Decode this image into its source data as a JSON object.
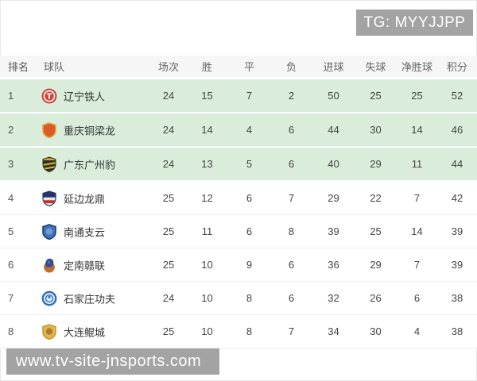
{
  "banners": {
    "top": {
      "text": "TG: MYYJJPP",
      "bg": "#a2a3a2",
      "fg": "#ffffff"
    },
    "bottom": {
      "text": "www.tv-site-jnsports.com",
      "bg": "#a2a3a2",
      "fg": "#ffffff"
    }
  },
  "table": {
    "columns": [
      "排名",
      "球队",
      "场次",
      "胜",
      "平",
      "负",
      "进球",
      "失球",
      "净胜球",
      "积分"
    ],
    "header_bg": "#f5f6f5",
    "highlight_color": "#d9edda",
    "rows": [
      {
        "rank": 1,
        "team": "辽宁铁人",
        "played": 24,
        "won": 15,
        "drawn": 7,
        "lost": 2,
        "gf": 50,
        "ga": 25,
        "gd": 25,
        "pts": 52,
        "highlight": true,
        "logo": {
          "shape": "circle-t",
          "colors": [
            "#ce3a32",
            "#ffffff",
            "#d2463c"
          ]
        }
      },
      {
        "rank": 2,
        "team": "重庆铜梁龙",
        "played": 24,
        "won": 14,
        "drawn": 4,
        "lost": 6,
        "gf": 44,
        "ga": 30,
        "gd": 14,
        "pts": 46,
        "highlight": true,
        "logo": {
          "shape": "shield",
          "colors": [
            "#e0a93c",
            "#dd5a28"
          ]
        }
      },
      {
        "rank": 3,
        "team": "广东广州豹",
        "played": 24,
        "won": 13,
        "drawn": 5,
        "lost": 6,
        "gf": 40,
        "ga": 29,
        "gd": 11,
        "pts": 44,
        "highlight": true,
        "logo": {
          "shape": "shield-stripes",
          "colors": [
            "#31301e",
            "#dfbc33"
          ]
        }
      },
      {
        "rank": 4,
        "team": "延边龙鼎",
        "played": 25,
        "won": 12,
        "drawn": 6,
        "lost": 7,
        "gf": 29,
        "ga": 22,
        "gd": 7,
        "pts": 42,
        "highlight": false,
        "logo": {
          "shape": "crest",
          "colors": [
            "#23356b",
            "#c1332f",
            "#e9e5da"
          ]
        }
      },
      {
        "rank": 5,
        "team": "南通支云",
        "played": 25,
        "won": 11,
        "drawn": 6,
        "lost": 8,
        "gf": 39,
        "ga": 25,
        "gd": 14,
        "pts": 39,
        "highlight": false,
        "logo": {
          "shape": "shield",
          "colors": [
            "#1d3e74",
            "#3f74b7",
            "#6f9cd0"
          ]
        }
      },
      {
        "rank": 6,
        "team": "定南赣联",
        "played": 25,
        "won": 10,
        "drawn": 9,
        "lost": 6,
        "gf": 36,
        "ga": 29,
        "gd": 7,
        "pts": 39,
        "highlight": false,
        "logo": {
          "shape": "ball-lion",
          "colors": [
            "#2c4f9f",
            "#c26d2c"
          ]
        }
      },
      {
        "rank": 7,
        "team": "石家庄功夫",
        "played": 24,
        "won": 10,
        "drawn": 8,
        "lost": 6,
        "gf": 32,
        "ga": 26,
        "gd": 6,
        "pts": 38,
        "highlight": false,
        "logo": {
          "shape": "circle-badge",
          "colors": [
            "#2f6eb5",
            "#ddeaf7"
          ]
        }
      },
      {
        "rank": 8,
        "team": "大连鲲城",
        "played": 25,
        "won": 10,
        "drawn": 8,
        "lost": 7,
        "gf": 34,
        "ga": 30,
        "gd": 4,
        "pts": 38,
        "highlight": false,
        "logo": {
          "shape": "shield",
          "colors": [
            "#c49a36",
            "#e2b54e",
            "#a87e2f"
          ]
        }
      }
    ]
  }
}
